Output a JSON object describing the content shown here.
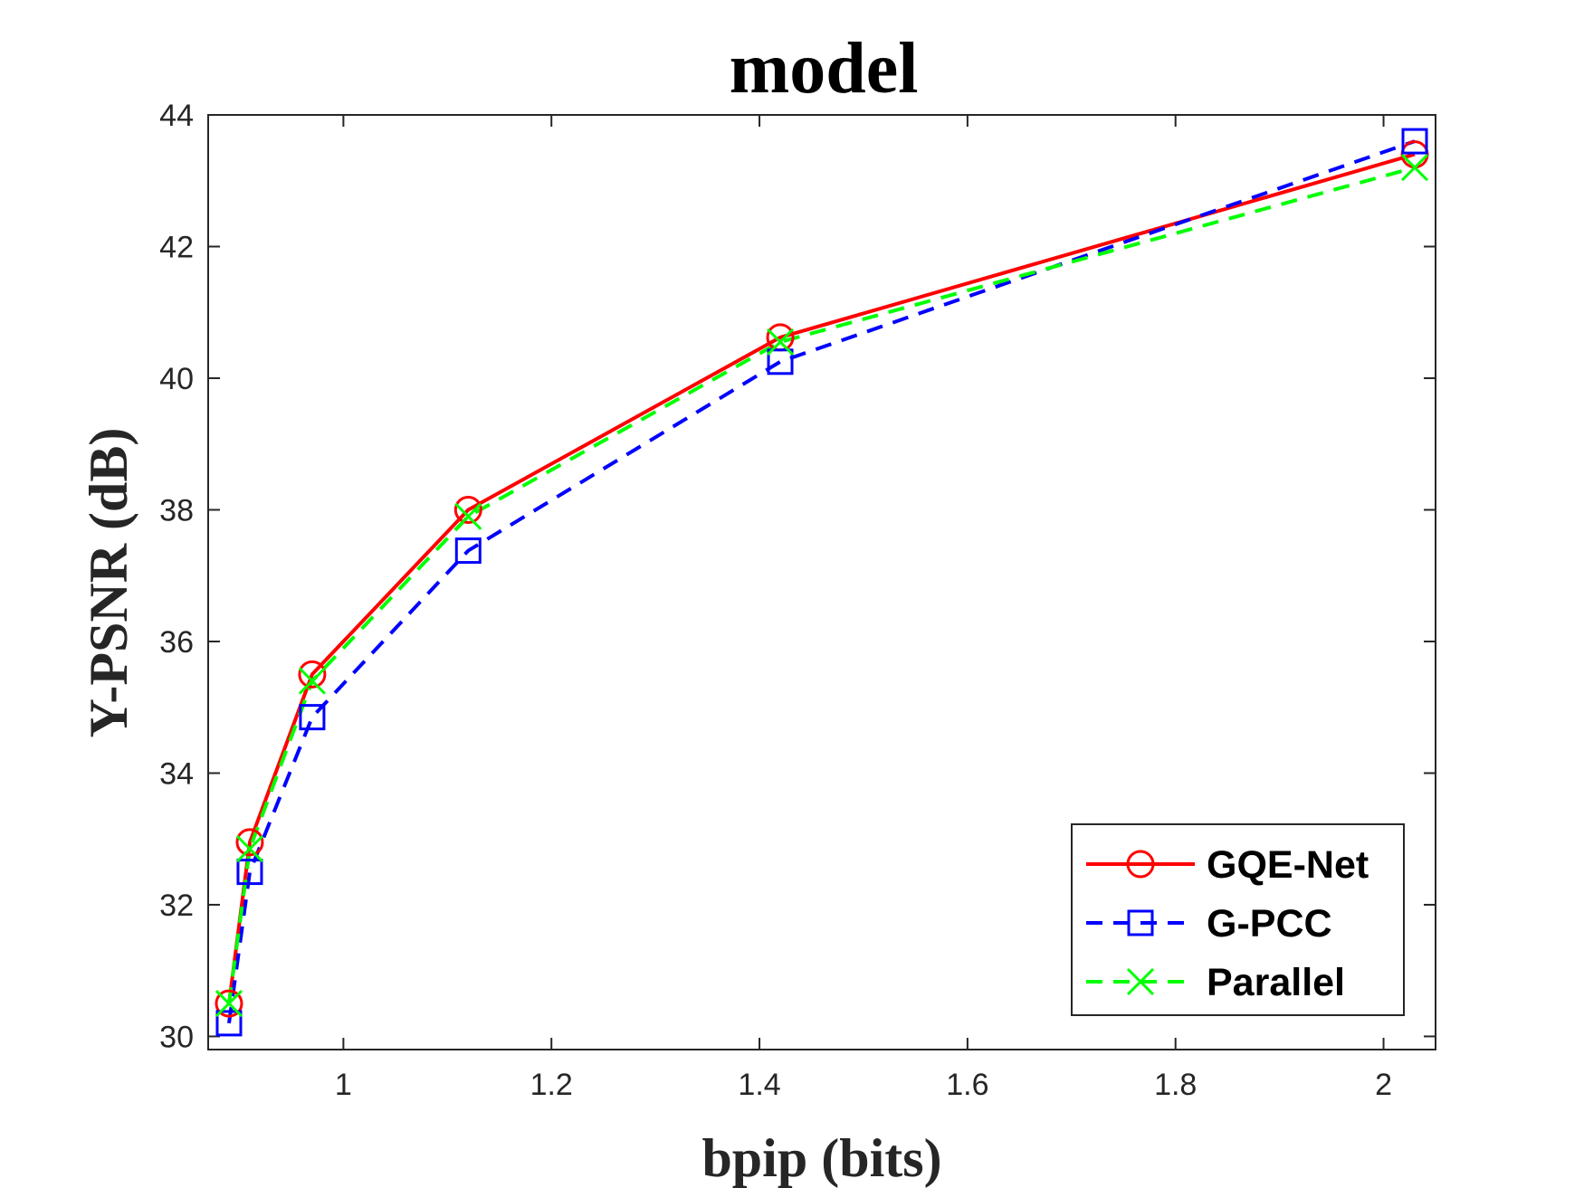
{
  "chart_data": {
    "type": "line",
    "title": "model",
    "xlabel": "bpip (bits)",
    "ylabel": "Y-PSNR (dB)",
    "xlim": [
      0.87,
      2.05
    ],
    "ylim": [
      29.8,
      44
    ],
    "xticks": [
      1,
      1.2,
      1.4,
      1.6,
      1.8,
      2
    ],
    "xtick_labels": [
      "1",
      "1.2",
      "1.4",
      "1.6",
      "1.8",
      "2"
    ],
    "yticks": [
      30,
      32,
      34,
      36,
      38,
      40,
      42,
      44
    ],
    "ytick_labels": [
      "30",
      "32",
      "34",
      "36",
      "38",
      "40",
      "42",
      "44"
    ],
    "grid": false,
    "legend_position": "bottom-right",
    "series": [
      {
        "name": "GQE-Net",
        "color": "#ff0000",
        "line_style": "solid",
        "marker": "circle",
        "x": [
          0.89,
          0.91,
          0.97,
          1.12,
          1.42,
          2.03
        ],
        "y": [
          30.5,
          32.95,
          35.5,
          38.0,
          40.62,
          43.4
        ]
      },
      {
        "name": "G-PCC",
        "color": "#0000ff",
        "line_style": "dashed",
        "marker": "square",
        "x": [
          0.89,
          0.91,
          0.97,
          1.12,
          1.42,
          2.03
        ],
        "y": [
          30.2,
          32.5,
          34.85,
          37.38,
          40.25,
          43.6
        ]
      },
      {
        "name": "Parallel",
        "color": "#00ff00",
        "line_style": "dashed",
        "marker": "x",
        "x": [
          0.89,
          0.91,
          0.97,
          1.12,
          1.42,
          2.03
        ],
        "y": [
          30.5,
          32.85,
          35.4,
          37.9,
          40.55,
          43.2
        ]
      }
    ]
  }
}
